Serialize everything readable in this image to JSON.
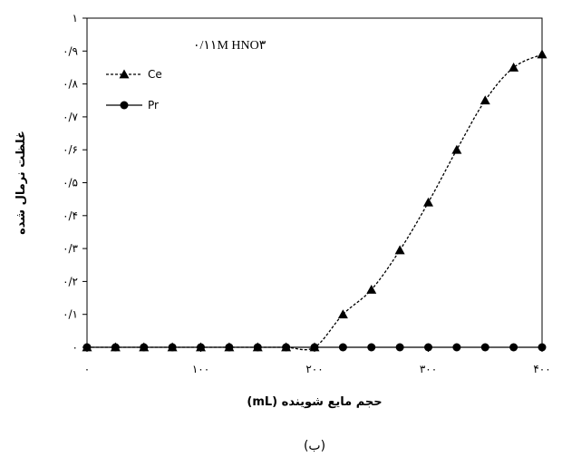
{
  "chart_data": {
    "type": "line",
    "title": "",
    "xlabel": "حجم مایع شوینده (mL)",
    "ylabel": "غلظت نرمال شده",
    "caption": "(ب)",
    "xlim": [
      0,
      400
    ],
    "ylim": [
      0,
      1
    ],
    "x_ticks": [
      0,
      100,
      200,
      300,
      400
    ],
    "x_tick_labels": [
      "۰",
      "۱۰۰",
      "۲۰۰",
      "۳۰۰",
      "۴۰۰"
    ],
    "y_ticks": [
      0,
      0.1,
      0.2,
      0.3,
      0.4,
      0.5,
      0.6,
      0.7,
      0.8,
      0.9,
      1
    ],
    "y_tick_labels": [
      "۰",
      "۰/۱",
      "۰/۲",
      "۰/۳",
      "۰/۴",
      "۰/۵",
      "۰/۶",
      "۰/۷",
      "۰/۸",
      "۰/۹",
      "۱"
    ],
    "grid": false,
    "legend": {
      "placement": "top-left",
      "title": "۰/۱۱M HNO۳"
    },
    "series": [
      {
        "name": "Ce",
        "marker": "triangle",
        "line_style": "dotted",
        "color": "#000000",
        "x": [
          0,
          25,
          50,
          75,
          100,
          125,
          150,
          175,
          200,
          225,
          250,
          275,
          300,
          325,
          350,
          375,
          400
        ],
        "y": [
          0,
          0,
          0,
          0,
          0,
          0,
          0,
          0,
          0,
          0.1,
          0.175,
          0.295,
          0.44,
          0.6,
          0.75,
          0.85,
          0.89
        ]
      },
      {
        "name": "Pr",
        "marker": "circle",
        "line_style": "solid",
        "color": "#000000",
        "x": [
          0,
          25,
          50,
          75,
          100,
          125,
          150,
          175,
          200,
          225,
          250,
          275,
          300,
          325,
          350,
          375,
          400
        ],
        "y": [
          0,
          0,
          0,
          0,
          0,
          0,
          0,
          0,
          0,
          0,
          0,
          0,
          0,
          0,
          0,
          0,
          0
        ]
      }
    ]
  }
}
